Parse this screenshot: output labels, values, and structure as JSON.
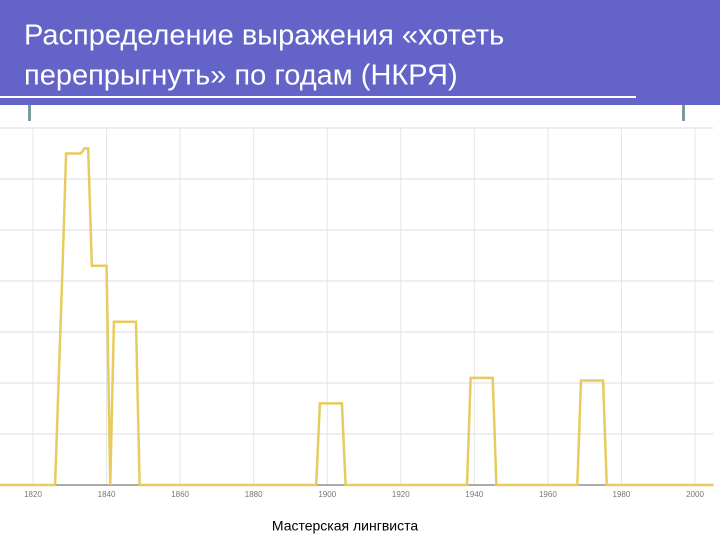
{
  "slide": {
    "title_line1": "Распределение выражения «хотеть",
    "title_line2": "перепрыгнуть» по годам (НКРЯ)",
    "footer": "Мастерская лингвиста"
  },
  "chart_data": {
    "type": "line",
    "x": [
      1811,
      1826,
      1828,
      1829,
      1833,
      1834,
      1835,
      1836,
      1840,
      1841,
      1842,
      1848,
      1849,
      1897,
      1898,
      1904,
      1905,
      1938,
      1939,
      1945,
      1946,
      1968,
      1969,
      1975,
      1976,
      2005
    ],
    "series": [
      {
        "color": "#e6cc60",
        "values": [
          0,
          0,
          4.2,
          6.5,
          6.5,
          6.6,
          6.6,
          4.3,
          4.3,
          0,
          3.2,
          3.2,
          0,
          0,
          1.6,
          1.6,
          0,
          0,
          2.1,
          2.1,
          0,
          0,
          2.05,
          2.05,
          0,
          0
        ]
      }
    ],
    "xlim": [
      1811,
      2005
    ],
    "xticks": [
      1820,
      1840,
      1860,
      1880,
      1900,
      1920,
      1940,
      1960,
      1980,
      2000
    ],
    "ylim": [
      0,
      7
    ],
    "ygrid": [
      1,
      2,
      3,
      4,
      5,
      6,
      7
    ],
    "grid": true
  }
}
